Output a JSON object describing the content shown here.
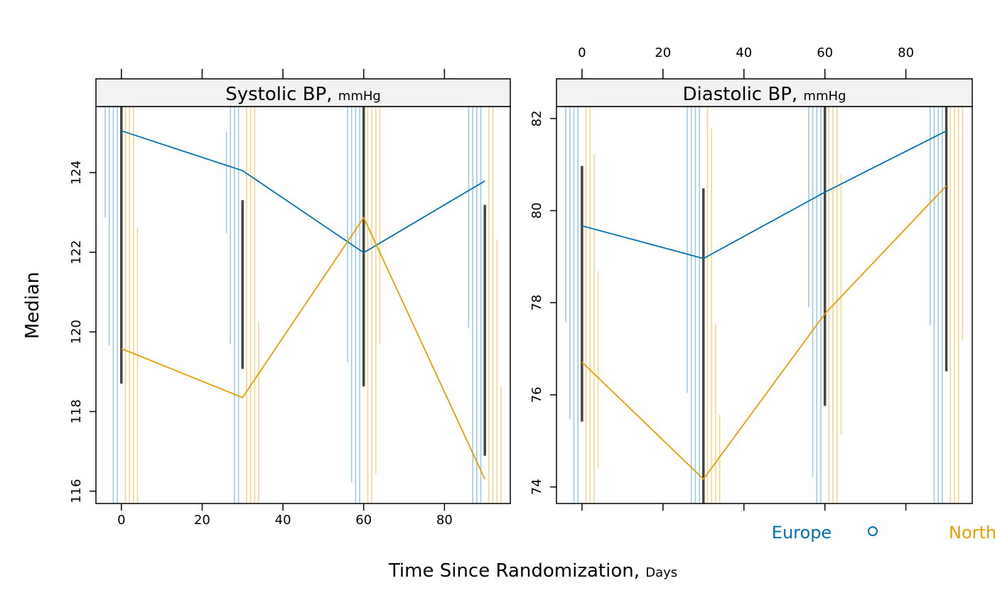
{
  "chart_data": {
    "type": "line",
    "xlabel": "Time Since Randomization",
    "xlabel_units": "Days",
    "ylabel": "Median",
    "grid": false,
    "legend_placement": "bottom-right",
    "colors": {
      "Europe": "#0072B2",
      "North America": "#E69F00",
      "Europe_spike": "#9DCBE6",
      "North America_spike": "#F6D68E",
      "interval": "#444444",
      "strip": "#F2F2F2"
    },
    "legend": {
      "items": [
        {
          "label": "Europe",
          "color": "#0072B2",
          "symbol": "circle"
        },
        {
          "label": "North America",
          "color": "#E69F00"
        }
      ]
    },
    "panels": [
      {
        "title": "Systolic BP",
        "units": "mmHg",
        "xlim": [
          -6.3,
          96.3
        ],
        "ylim": [
          115.69,
          125.66
        ],
        "xticks": [
          0,
          20,
          40,
          60,
          80
        ],
        "yticks": [
          116,
          118,
          120,
          122,
          124
        ],
        "series": [
          {
            "name": "Europe",
            "x": [
              0,
              30,
              60,
              90
            ],
            "y": [
              125.05,
              124.05,
              121.99,
              123.79
            ]
          },
          {
            "name": "North America",
            "x": [
              0,
              30,
              60,
              90
            ],
            "y": [
              119.58,
              118.35,
              122.87,
              116.3
            ]
          }
        ],
        "intervals": [
          {
            "x": 0,
            "lo": 118.7,
            "hi": 125.66
          },
          {
            "x": 30,
            "lo": 119.07,
            "hi": 123.31
          },
          {
            "x": 60,
            "lo": 118.63,
            "hi": 125.66
          },
          {
            "x": 90,
            "lo": 116.89,
            "hi": 123.19
          }
        ],
        "spikes": [
          {
            "group": "Europe",
            "x": -4,
            "lo": 122.87,
            "hi": 125.66
          },
          {
            "group": "Europe",
            "x": -3,
            "lo": 119.66,
            "hi": 125.66
          },
          {
            "group": "Europe",
            "x": -2,
            "lo": 115.69,
            "hi": 125.66
          },
          {
            "group": "Europe",
            "x": -1,
            "lo": 115.69,
            "hi": 125.66
          },
          {
            "group": "North America",
            "x": 1,
            "lo": 115.69,
            "hi": 125.66
          },
          {
            "group": "North America",
            "x": 2,
            "lo": 115.69,
            "hi": 125.66
          },
          {
            "group": "North America",
            "x": 3,
            "lo": 115.69,
            "hi": 125.66
          },
          {
            "group": "North America",
            "x": 4,
            "lo": 115.69,
            "hi": 122.62
          },
          {
            "group": "Europe",
            "x": 26,
            "lo": 122.48,
            "hi": 125.03
          },
          {
            "group": "Europe",
            "x": 27,
            "lo": 119.69,
            "hi": 125.66
          },
          {
            "group": "Europe",
            "x": 28,
            "lo": 115.69,
            "hi": 125.66
          },
          {
            "group": "Europe",
            "x": 29,
            "lo": 115.69,
            "hi": 125.66
          },
          {
            "group": "North America",
            "x": 31,
            "lo": 115.69,
            "hi": 125.66
          },
          {
            "group": "North America",
            "x": 32,
            "lo": 115.69,
            "hi": 125.66
          },
          {
            "group": "North America",
            "x": 33,
            "lo": 115.69,
            "hi": 125.66
          },
          {
            "group": "North America",
            "x": 34,
            "lo": 115.69,
            "hi": 120.27
          },
          {
            "group": "Europe",
            "x": 56,
            "lo": 119.25,
            "hi": 125.66
          },
          {
            "group": "Europe",
            "x": 57,
            "lo": 116.22,
            "hi": 125.66
          },
          {
            "group": "Europe",
            "x": 58,
            "lo": 115.69,
            "hi": 125.66
          },
          {
            "group": "Europe",
            "x": 59,
            "lo": 115.69,
            "hi": 125.66
          },
          {
            "group": "North America",
            "x": 61,
            "lo": 115.69,
            "hi": 125.66
          },
          {
            "group": "North America",
            "x": 62,
            "lo": 115.69,
            "hi": 125.66
          },
          {
            "group": "North America",
            "x": 63,
            "lo": 116.44,
            "hi": 125.66
          },
          {
            "group": "North America",
            "x": 64,
            "lo": 119.69,
            "hi": 125.66
          },
          {
            "group": "Europe",
            "x": 86,
            "lo": 120.1,
            "hi": 125.66
          },
          {
            "group": "Europe",
            "x": 87,
            "lo": 115.69,
            "hi": 125.66
          },
          {
            "group": "Europe",
            "x": 88,
            "lo": 115.69,
            "hi": 125.66
          },
          {
            "group": "Europe",
            "x": 89,
            "lo": 115.69,
            "hi": 125.66
          },
          {
            "group": "North America",
            "x": 91,
            "lo": 115.69,
            "hi": 125.66
          },
          {
            "group": "North America",
            "x": 92,
            "lo": 115.69,
            "hi": 125.66
          },
          {
            "group": "North America",
            "x": 93,
            "lo": 115.69,
            "hi": 122.32
          },
          {
            "group": "North America",
            "x": 94,
            "lo": 115.69,
            "hi": 118.62
          }
        ]
      },
      {
        "title": "Diastolic BP",
        "units": "mmHg",
        "xlim": [
          -6.3,
          96.4
        ],
        "ylim": [
          73.64,
          82.26
        ],
        "xticks": [
          0,
          20,
          40,
          60,
          80
        ],
        "yticks": [
          74,
          76,
          78,
          80,
          82
        ],
        "series": [
          {
            "name": "Europe",
            "x": [
              0,
              30,
              60,
              90
            ],
            "y": [
              79.67,
              78.96,
              80.4,
              81.73
            ]
          },
          {
            "name": "North America",
            "x": [
              0,
              30,
              60,
              90
            ],
            "y": [
              76.71,
              74.17,
              77.76,
              80.54
            ]
          }
        ],
        "intervals": [
          {
            "x": 0,
            "lo": 75.42,
            "hi": 80.97
          },
          {
            "x": 30,
            "lo": 73.64,
            "hi": 80.48
          },
          {
            "x": 60,
            "lo": 75.76,
            "hi": 82.26
          },
          {
            "x": 90,
            "lo": 76.51,
            "hi": 82.26
          }
        ],
        "spikes": [
          {
            "group": "Europe",
            "x": -4,
            "lo": 77.58,
            "hi": 82.26
          },
          {
            "group": "Europe",
            "x": -3,
            "lo": 75.47,
            "hi": 82.26
          },
          {
            "group": "Europe",
            "x": -2,
            "lo": 73.64,
            "hi": 82.26
          },
          {
            "group": "Europe",
            "x": -1,
            "lo": 73.64,
            "hi": 82.26
          },
          {
            "group": "North America",
            "x": 1,
            "lo": 73.64,
            "hi": 82.26
          },
          {
            "group": "North America",
            "x": 2,
            "lo": 73.64,
            "hi": 82.26
          },
          {
            "group": "North America",
            "x": 3,
            "lo": 73.64,
            "hi": 81.23
          },
          {
            "group": "North America",
            "x": 4,
            "lo": 74.43,
            "hi": 78.68
          },
          {
            "group": "Europe",
            "x": 26,
            "lo": 76.04,
            "hi": 82.26
          },
          {
            "group": "Europe",
            "x": 27,
            "lo": 73.64,
            "hi": 82.26
          },
          {
            "group": "Europe",
            "x": 28,
            "lo": 73.64,
            "hi": 82.26
          },
          {
            "group": "Europe",
            "x": 29,
            "lo": 73.64,
            "hi": 82.26
          },
          {
            "group": "North America",
            "x": 31,
            "lo": 73.64,
            "hi": 82.26
          },
          {
            "group": "North America",
            "x": 32,
            "lo": 73.64,
            "hi": 81.78
          },
          {
            "group": "North America",
            "x": 33,
            "lo": 73.64,
            "hi": 77.55
          },
          {
            "group": "North America",
            "x": 34,
            "lo": 73.64,
            "hi": 75.57
          },
          {
            "group": "Europe",
            "x": 56,
            "lo": 77.9,
            "hi": 82.26
          },
          {
            "group": "Europe",
            "x": 57,
            "lo": 74.22,
            "hi": 82.26
          },
          {
            "group": "Europe",
            "x": 58,
            "lo": 73.64,
            "hi": 82.26
          },
          {
            "group": "Europe",
            "x": 59,
            "lo": 73.64,
            "hi": 82.26
          },
          {
            "group": "North America",
            "x": 61,
            "lo": 73.64,
            "hi": 82.26
          },
          {
            "group": "North America",
            "x": 62,
            "lo": 73.64,
            "hi": 82.26
          },
          {
            "group": "North America",
            "x": 63,
            "lo": 73.64,
            "hi": 82.26
          },
          {
            "group": "North America",
            "x": 64,
            "lo": 75.14,
            "hi": 80.78
          },
          {
            "group": "Europe",
            "x": 86,
            "lo": 77.52,
            "hi": 82.26
          },
          {
            "group": "Europe",
            "x": 87,
            "lo": 73.64,
            "hi": 82.26
          },
          {
            "group": "Europe",
            "x": 88,
            "lo": 73.64,
            "hi": 82.26
          },
          {
            "group": "Europe",
            "x": 89,
            "lo": 73.64,
            "hi": 82.26
          },
          {
            "group": "North America",
            "x": 91,
            "lo": 73.64,
            "hi": 82.26
          },
          {
            "group": "North America",
            "x": 92,
            "lo": 73.64,
            "hi": 82.26
          },
          {
            "group": "North America",
            "x": 93,
            "lo": 73.64,
            "hi": 82.26
          },
          {
            "group": "North America",
            "x": 94,
            "lo": 77.21,
            "hi": 82.26
          }
        ]
      }
    ]
  }
}
